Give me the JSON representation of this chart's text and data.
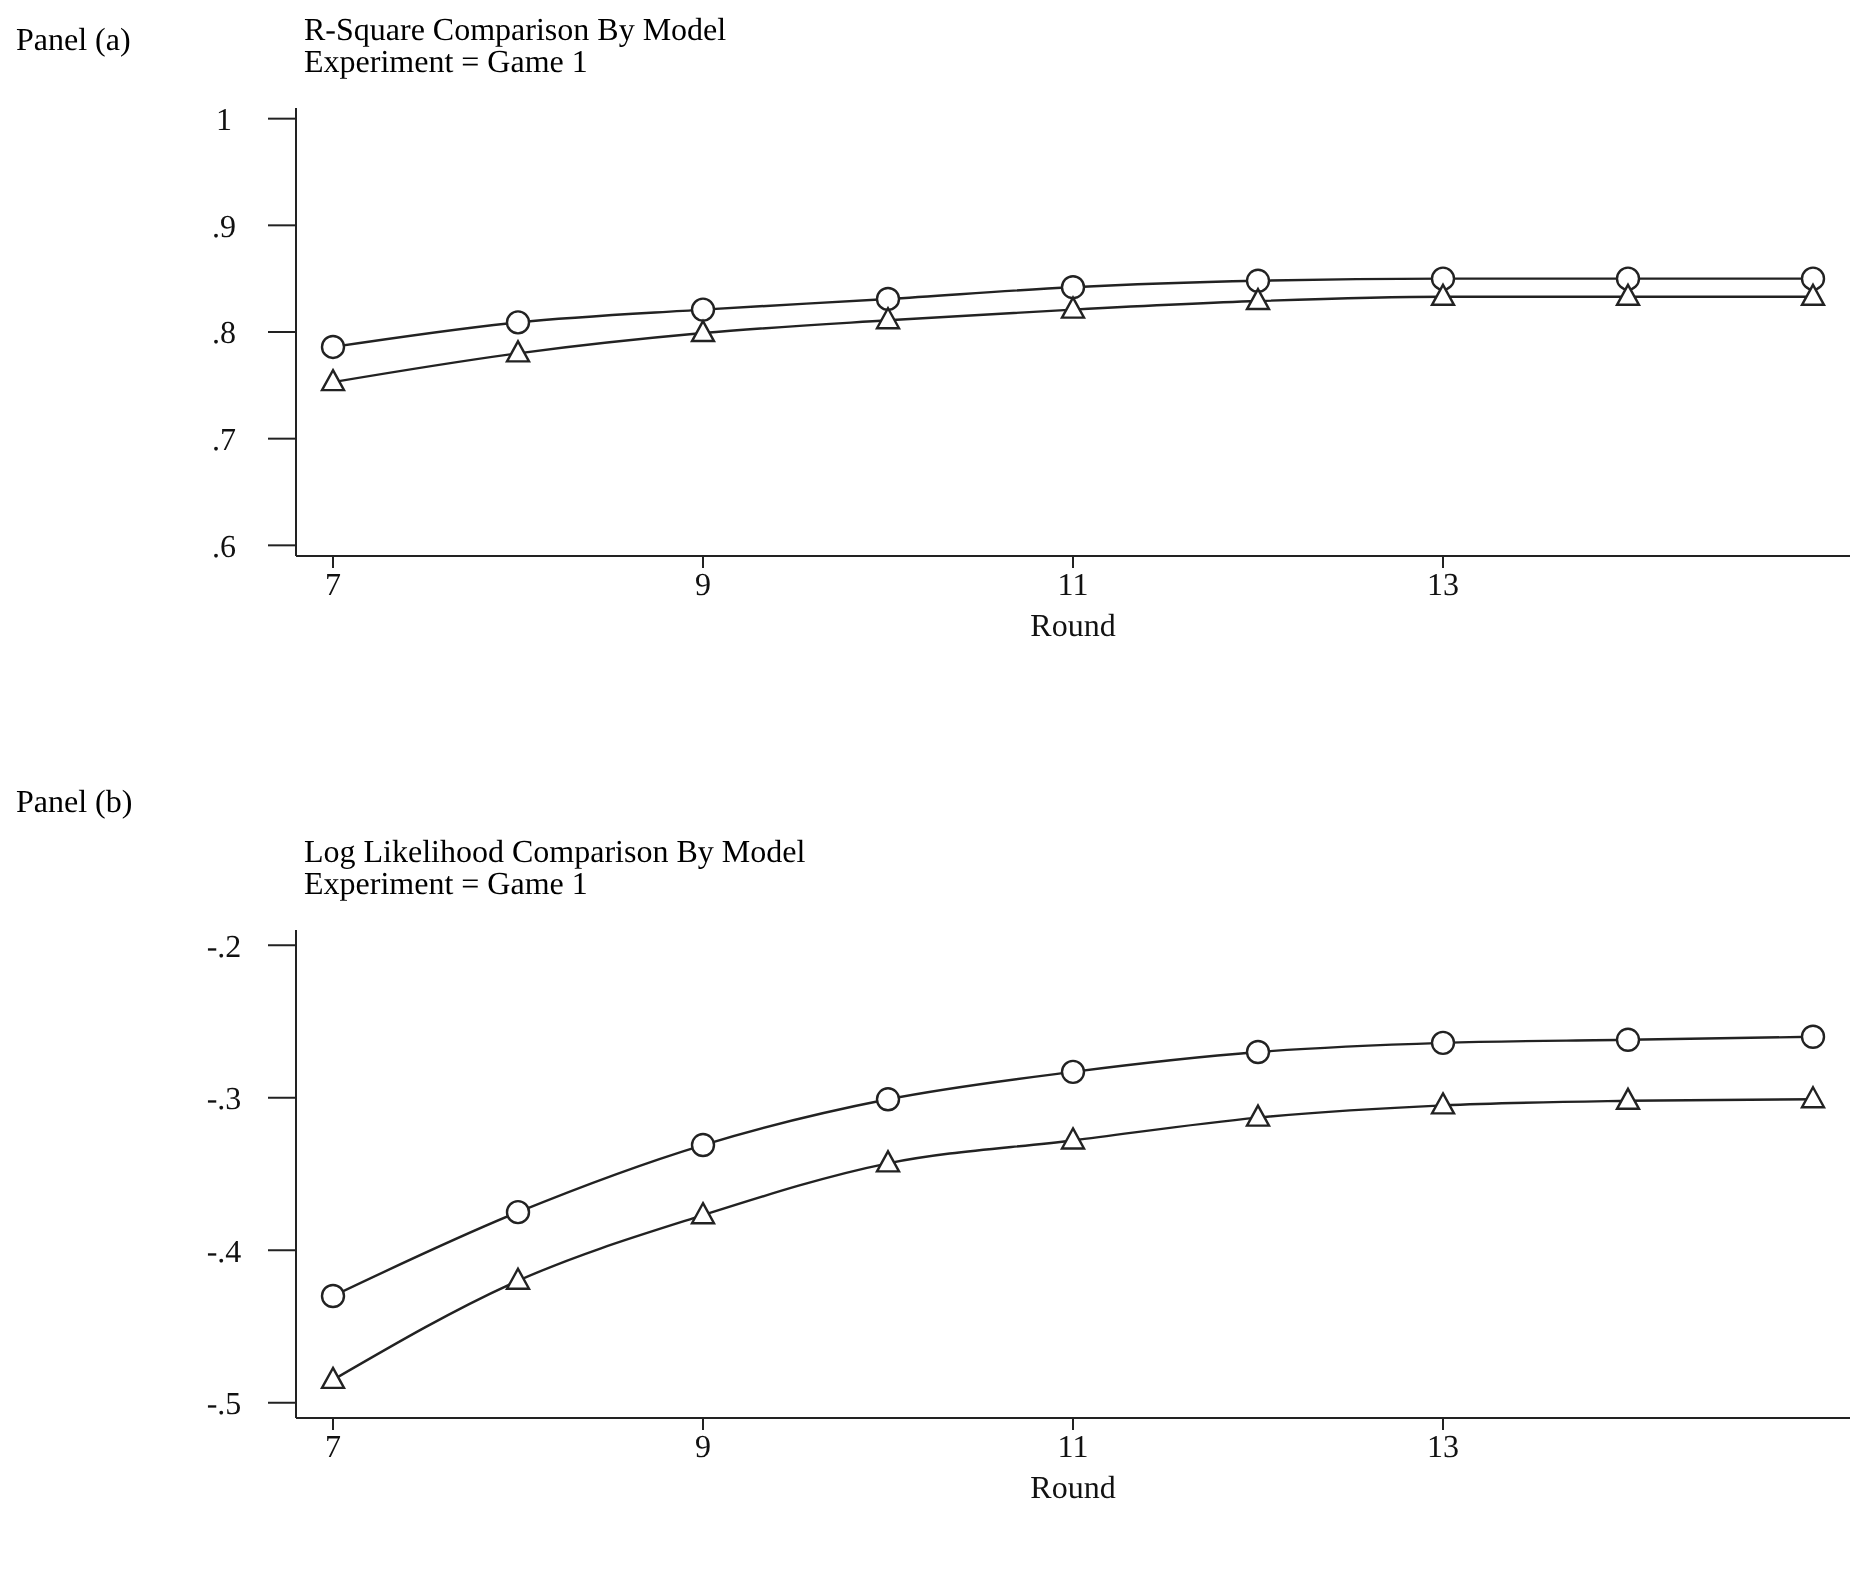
{
  "chart_data": [
    {
      "type": "line",
      "title": "R-Square Comparison By Model",
      "subtitle": "Experiment = Game 1",
      "xlabel": "Round",
      "annotations": [
        "Panel (a)"
      ],
      "x": [
        7,
        8,
        9,
        10,
        11,
        12,
        13,
        14,
        15
      ],
      "series": [
        {
          "color": "#222222",
          "marker": "circle",
          "values": [
            0.786,
            0.809,
            0.821,
            0.831,
            0.842,
            0.848,
            0.85,
            0.85,
            0.85
          ]
        },
        {
          "color": "#222222",
          "marker": "triangle",
          "values": [
            0.753,
            0.78,
            0.799,
            0.811,
            0.821,
            0.829,
            0.833,
            0.833,
            0.833
          ]
        }
      ],
      "xlim": [
        6.8,
        15.2
      ],
      "xticks": [
        7,
        9,
        11,
        13
      ],
      "ylim": [
        0.59,
        1.01
      ],
      "yticks": [
        {
          "value": 0.6,
          "label": ".6"
        },
        {
          "value": 0.7,
          "label": ".7"
        },
        {
          "value": 0.8,
          "label": ".8"
        },
        {
          "value": 0.9,
          "label": ".9"
        },
        1
      ],
      "grid": false,
      "legend": false
    },
    {
      "type": "line",
      "title": "Log Likelihood Comparison By Model",
      "subtitle": "Experiment = Game 1",
      "xlabel": "Round",
      "annotations": [
        "Panel (b)"
      ],
      "x": [
        7,
        8,
        9,
        10,
        11,
        12,
        13,
        14,
        15
      ],
      "series": [
        {
          "color": "#222222",
          "marker": "circle",
          "values": [
            -0.43,
            -0.375,
            -0.331,
            -0.301,
            -0.283,
            -0.27,
            -0.264,
            -0.262,
            -0.26
          ]
        },
        {
          "color": "#222222",
          "marker": "triangle",
          "values": [
            -0.485,
            -0.42,
            -0.377,
            -0.343,
            -0.328,
            -0.313,
            -0.305,
            -0.302,
            -0.301
          ]
        }
      ],
      "xlim": [
        6.8,
        15.2
      ],
      "xticks": [
        7,
        9,
        11,
        13
      ],
      "ylim": [
        -0.51,
        -0.19
      ],
      "yticks": [
        {
          "value": -0.5,
          "label": "-.5"
        },
        {
          "value": -0.4,
          "label": "-.4"
        },
        {
          "value": -0.3,
          "label": "-.3"
        },
        {
          "value": -0.2,
          "label": "-.2"
        }
      ],
      "grid": false,
      "legend": false
    }
  ]
}
